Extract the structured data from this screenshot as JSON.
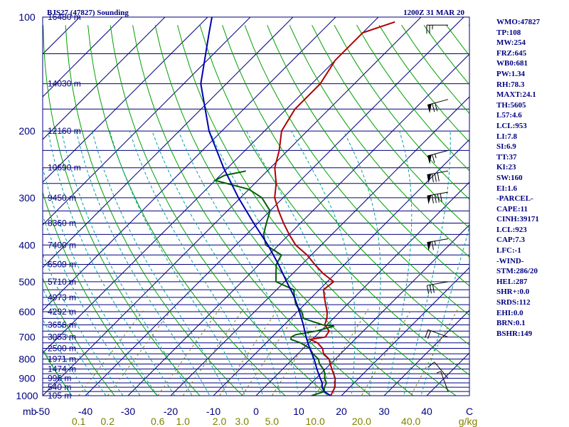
{
  "header": {
    "station": "BJS27 (47827) Sounding",
    "time": "1200Z 31 MAR 20"
  },
  "indices": [
    "WMO:47827",
    "TP:108",
    "MW:254",
    "FRZ:645",
    "WB0:681",
    "PW:1.34",
    "RH:78.3",
    "MAXT:24.1",
    "TH:5605",
    "L57:4.6",
    "LCL:953",
    "LI:7.8",
    "SI:6.9",
    "TT:37",
    "KI:23",
    "SW:160",
    "EI:1.6",
    "-PARCEL-",
    "CAPE:11",
    "CINH:39171",
    "LCL:923",
    "CAP:7.3",
    "LFC:-1",
    "-WIND-",
    "STM:286/20",
    "HEL:287",
    "SHR+:0.0",
    "SRDS:112",
    "EHI:0.0",
    "BRN:0.1",
    "BSHR:149"
  ],
  "colors": {
    "frame": "#000080",
    "isotherm": "#000080",
    "dry_adiabat": "#00a000",
    "moist_adiabat": "#00a0a0",
    "mixing_ratio": "#808000",
    "temperature": "#b00000",
    "dewpoint": "#006000",
    "parcel": "#0000b0",
    "wind_barb": "#000000"
  },
  "chart_data": {
    "type": "skew-t",
    "y_scale": "log-pressure",
    "pressure_range_mb": [
      100,
      1000
    ],
    "temperature_range_c": [
      -50,
      50
    ],
    "pressure_unit": "mb",
    "mixing_ratio_unit": "g/kg",
    "pressure_levels": [
      {
        "p": 100,
        "label": "100",
        "height": "16480 m"
      },
      {
        "p": 150,
        "label": "",
        "height": "14030 m"
      },
      {
        "p": 200,
        "label": "200",
        "height": "12160 m"
      },
      {
        "p": 250,
        "label": "",
        "height": "10690 m"
      },
      {
        "p": 300,
        "label": "300",
        "height": "9450 m"
      },
      {
        "p": 350,
        "label": "",
        "height": "8360 m"
      },
      {
        "p": 400,
        "label": "400",
        "height": "7400 m"
      },
      {
        "p": 450,
        "label": "",
        "height": "6509 m"
      },
      {
        "p": 500,
        "label": "500",
        "height": "5710 m"
      },
      {
        "p": 550,
        "label": "",
        "height": "4973 m"
      },
      {
        "p": 600,
        "label": "600",
        "height": "4292 m"
      },
      {
        "p": 650,
        "label": "",
        "height": "3656 m"
      },
      {
        "p": 700,
        "label": "700",
        "height": "3053 m"
      },
      {
        "p": 750,
        "label": "",
        "height": "2500 m"
      },
      {
        "p": 800,
        "label": "800",
        "height": "1971 m"
      },
      {
        "p": 850,
        "label": "",
        "height": "1474 m"
      },
      {
        "p": 900,
        "label": "900",
        "height": "996 m"
      },
      {
        "p": 950,
        "label": "",
        "height": "540 m"
      },
      {
        "p": 1000,
        "label": "1000",
        "height": "105 m"
      }
    ],
    "extra_isobars": [
      125,
      175,
      225,
      275,
      325,
      375,
      425,
      475,
      525,
      575,
      625,
      675,
      725,
      775,
      825,
      875,
      925,
      975
    ],
    "temperature_ticks": [
      -50,
      -40,
      -30,
      -20,
      -10,
      0,
      10,
      20,
      30,
      40,
      50
    ],
    "temperature_tick_labels": [
      "-50",
      "-40",
      "-30",
      "-20",
      "-10",
      "0",
      "10",
      "20",
      "30",
      "40",
      "C"
    ],
    "mixing_ratio_labels": [
      {
        "w": 0.1,
        "label": "0.1"
      },
      {
        "w": 0.2,
        "label": "0.2"
      },
      {
        "w": 0.6,
        "label": "0.6"
      },
      {
        "w": 1.0,
        "label": "1.0"
      },
      {
        "w": 2.0,
        "label": "2.0"
      },
      {
        "w": 3.0,
        "label": "3.0"
      },
      {
        "w": 5.0,
        "label": "5.0"
      },
      {
        "w": 10.0,
        "label": "10.0"
      },
      {
        "w": 20.0,
        "label": "20.0"
      },
      {
        "w": 40.0,
        "label": "40.0"
      }
    ],
    "series": [
      {
        "key": "temperature",
        "points": [
          [
            1000,
            17.5
          ],
          [
            975,
            17
          ],
          [
            950,
            16.5
          ],
          [
            925,
            15.5
          ],
          [
            900,
            14.5
          ],
          [
            875,
            13
          ],
          [
            850,
            11.5
          ],
          [
            825,
            10
          ],
          [
            800,
            8.5
          ],
          [
            775,
            6
          ],
          [
            750,
            4.5
          ],
          [
            725,
            2
          ],
          [
            710,
            -0.5
          ],
          [
            700,
            2.5
          ],
          [
            675,
            2
          ],
          [
            650,
            -0.5
          ],
          [
            625,
            -1.5
          ],
          [
            600,
            -3
          ],
          [
            575,
            -5
          ],
          [
            550,
            -7
          ],
          [
            525,
            -9
          ],
          [
            500,
            -8.5
          ],
          [
            475,
            -13
          ],
          [
            450,
            -17
          ],
          [
            425,
            -21
          ],
          [
            400,
            -26
          ],
          [
            375,
            -30
          ],
          [
            350,
            -34
          ],
          [
            325,
            -38
          ],
          [
            300,
            -42
          ],
          [
            275,
            -45
          ],
          [
            250,
            -49
          ],
          [
            225,
            -52
          ],
          [
            200,
            -56
          ],
          [
            175,
            -58
          ],
          [
            150,
            -58
          ],
          [
            130,
            -60
          ],
          [
            110,
            -60
          ],
          [
            103,
            -55
          ]
        ]
      },
      {
        "key": "dewpoint",
        "points": [
          [
            1000,
            13
          ],
          [
            975,
            15
          ],
          [
            950,
            14
          ],
          [
            925,
            13.5
          ],
          [
            900,
            12
          ],
          [
            875,
            11
          ],
          [
            850,
            9.5
          ],
          [
            825,
            7.5
          ],
          [
            800,
            6
          ],
          [
            775,
            3.5
          ],
          [
            750,
            1.5
          ],
          [
            725,
            -2
          ],
          [
            710,
            -5
          ],
          [
            700,
            -5.5
          ],
          [
            690,
            -5
          ],
          [
            675,
            -1
          ],
          [
            655,
            2
          ],
          [
            650,
            -1
          ],
          [
            625,
            -7
          ],
          [
            600,
            -9
          ],
          [
            575,
            -12
          ],
          [
            550,
            -14
          ],
          [
            525,
            -16
          ],
          [
            500,
            -22
          ],
          [
            475,
            -24
          ],
          [
            450,
            -26
          ],
          [
            425,
            -27
          ],
          [
            400,
            -33
          ],
          [
            375,
            -36
          ],
          [
            350,
            -38
          ],
          [
            325,
            -40
          ],
          [
            300,
            -45
          ],
          [
            285,
            -50
          ],
          [
            270,
            -60
          ],
          [
            262,
            -59
          ],
          [
            255,
            -55
          ]
        ]
      },
      {
        "key": "parcel",
        "points": [
          [
            1000,
            17.5
          ],
          [
            975,
            15
          ],
          [
            950,
            13.5
          ],
          [
            925,
            12.5
          ],
          [
            900,
            11
          ],
          [
            875,
            9.5
          ],
          [
            850,
            8
          ],
          [
            800,
            5
          ],
          [
            750,
            1.5
          ],
          [
            700,
            -2
          ],
          [
            650,
            -5.5
          ],
          [
            600,
            -9.5
          ],
          [
            550,
            -14
          ],
          [
            500,
            -19.5
          ],
          [
            450,
            -25.5
          ],
          [
            400,
            -32.5
          ],
          [
            350,
            -41
          ],
          [
            300,
            -50.5
          ],
          [
            250,
            -61
          ],
          [
            200,
            -73
          ],
          [
            150,
            -86
          ],
          [
            110,
            -96
          ],
          [
            100,
            -99
          ]
        ]
      }
    ],
    "wind_barbs": [
      {
        "p": 105,
        "dir": 270,
        "spd": 25
      },
      {
        "p": 165,
        "dir": 285,
        "spd": 70
      },
      {
        "p": 225,
        "dir": 285,
        "spd": 65
      },
      {
        "p": 255,
        "dir": 280,
        "spd": 80
      },
      {
        "p": 290,
        "dir": 280,
        "spd": 90
      },
      {
        "p": 385,
        "dir": 280,
        "spd": 65
      },
      {
        "p": 500,
        "dir": 280,
        "spd": 30
      },
      {
        "p": 700,
        "dir": 250,
        "spd": 20
      },
      {
        "p": 900,
        "dir": 220,
        "spd": 10
      },
      {
        "p": 975,
        "dir": 200,
        "spd": 5
      }
    ]
  }
}
